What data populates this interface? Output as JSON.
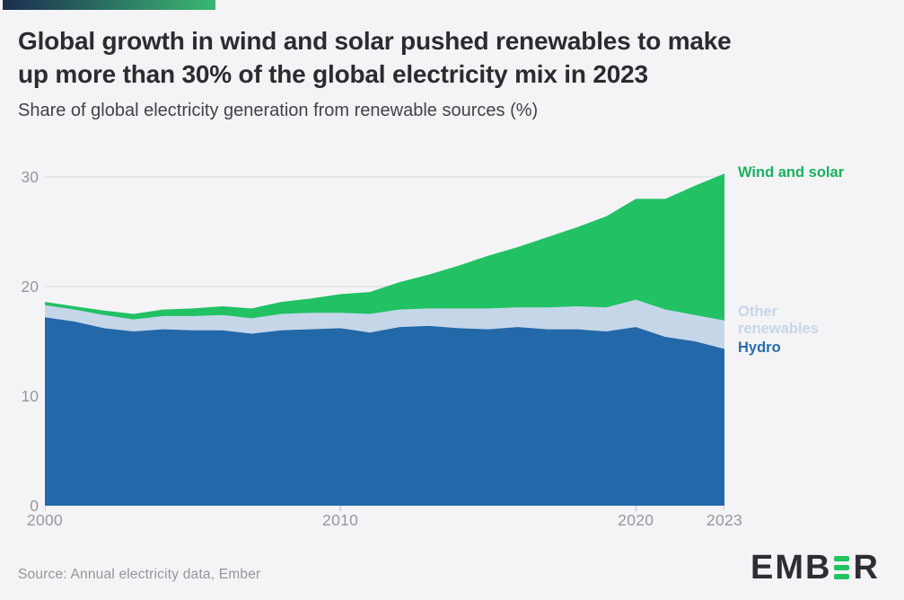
{
  "header": {
    "title_line1": "Global growth in wind and solar pushed renewables to make",
    "title_line2": "up more than 30% of the global electricity mix in 2023",
    "subtitle": "Share of global electricity generation from renewable sources (%)"
  },
  "footer": {
    "source": "Source: Annual electricity data, Ember",
    "logo_left": "EMB",
    "logo_right": "R"
  },
  "colors": {
    "background": "#f4f4f6",
    "grid": "#d8d8db",
    "tick": "#b5b5ba",
    "axis_text": "#97979e",
    "title_text": "#2b2b30",
    "brand_gradient_start": "#1b2d50",
    "brand_gradient_end": "#3bb873",
    "logo_text": "#2d2d33",
    "logo_bars": "#22c361"
  },
  "chart_data": {
    "type": "area",
    "stacked": true,
    "title": "Global growth in wind and solar pushed renewables to make up more than 30% of the global electricity mix in 2023",
    "ylabel": "Share of global electricity generation from renewable sources (%)",
    "xlabel": "",
    "grid": true,
    "legend_position": "right",
    "ylim": [
      0,
      31
    ],
    "y_ticks": [
      0,
      10,
      20,
      30
    ],
    "x_tick_years": [
      2000,
      2010,
      2020,
      2023
    ],
    "x_tick_labels": [
      "2000",
      "2010",
      "2020",
      "2023"
    ],
    "x": [
      2000,
      2001,
      2002,
      2003,
      2004,
      2005,
      2006,
      2007,
      2008,
      2009,
      2010,
      2011,
      2012,
      2013,
      2014,
      2015,
      2016,
      2017,
      2018,
      2019,
      2020,
      2021,
      2022,
      2023
    ],
    "series": [
      {
        "name": "Hydro",
        "color": "#2368a9",
        "values": [
          17.2,
          16.8,
          16.2,
          15.9,
          16.1,
          16.0,
          16.0,
          15.7,
          16.0,
          16.1,
          16.2,
          15.8,
          16.3,
          16.4,
          16.2,
          16.1,
          16.3,
          16.1,
          16.1,
          15.9,
          16.3,
          15.4,
          15.0,
          14.3
        ]
      },
      {
        "name": "Other renewables",
        "color": "#c6d6e9",
        "values": [
          1.1,
          1.1,
          1.2,
          1.1,
          1.2,
          1.3,
          1.4,
          1.4,
          1.5,
          1.5,
          1.4,
          1.7,
          1.6,
          1.6,
          1.8,
          1.9,
          1.8,
          2.0,
          2.1,
          2.2,
          2.5,
          2.5,
          2.4,
          2.6
        ]
      },
      {
        "name": "Wind and solar",
        "color": "#21c164",
        "values": [
          0.3,
          0.3,
          0.4,
          0.5,
          0.6,
          0.7,
          0.8,
          0.9,
          1.1,
          1.3,
          1.7,
          2.0,
          2.5,
          3.1,
          3.9,
          4.8,
          5.5,
          6.4,
          7.2,
          8.3,
          9.2,
          10.1,
          11.8,
          13.4
        ]
      }
    ],
    "totals": [
      18.6,
      18.2,
      17.8,
      17.5,
      17.9,
      18.0,
      18.2,
      18.0,
      18.6,
      18.9,
      19.3,
      19.5,
      20.4,
      21.1,
      21.9,
      22.8,
      23.6,
      24.5,
      25.4,
      26.4,
      28.0,
      28.0,
      29.2,
      30.3
    ]
  }
}
